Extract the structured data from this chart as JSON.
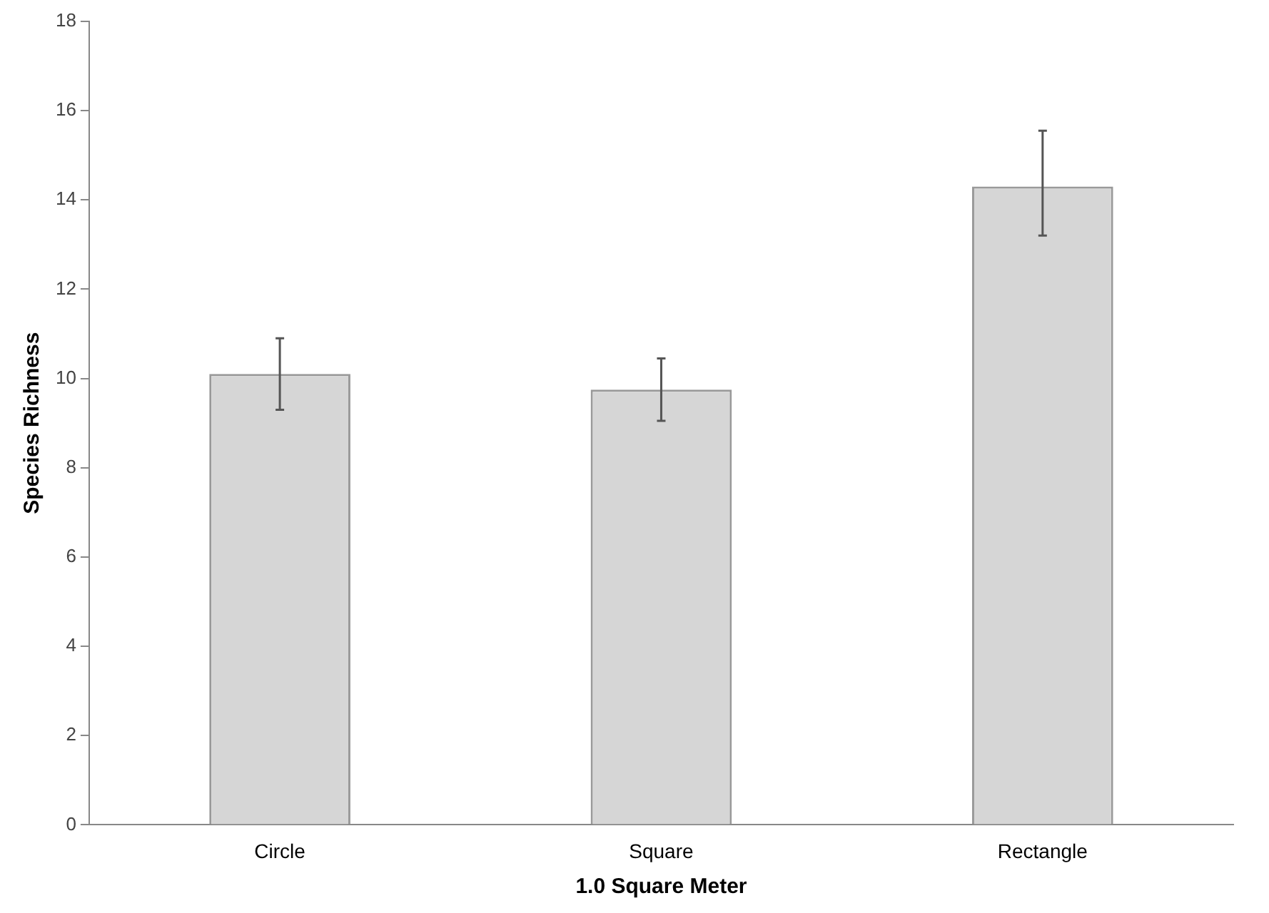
{
  "chart_data": {
    "type": "bar",
    "xlabel": "1.0 Square Meter",
    "ylabel": "Species Richness",
    "categories": [
      "Circle",
      "Square",
      "Rectangle"
    ],
    "values": [
      10.1,
      9.75,
      14.3
    ],
    "errors": [
      [
        9.3,
        10.9
      ],
      [
        9.05,
        10.45
      ],
      [
        13.2,
        15.55
      ]
    ],
    "color": "#d6d6d6",
    "ylim": [
      0,
      18
    ],
    "yticks": [
      0,
      2,
      4,
      6,
      8,
      10,
      12,
      14,
      16,
      18
    ],
    "grid": false,
    "legend": false
  }
}
